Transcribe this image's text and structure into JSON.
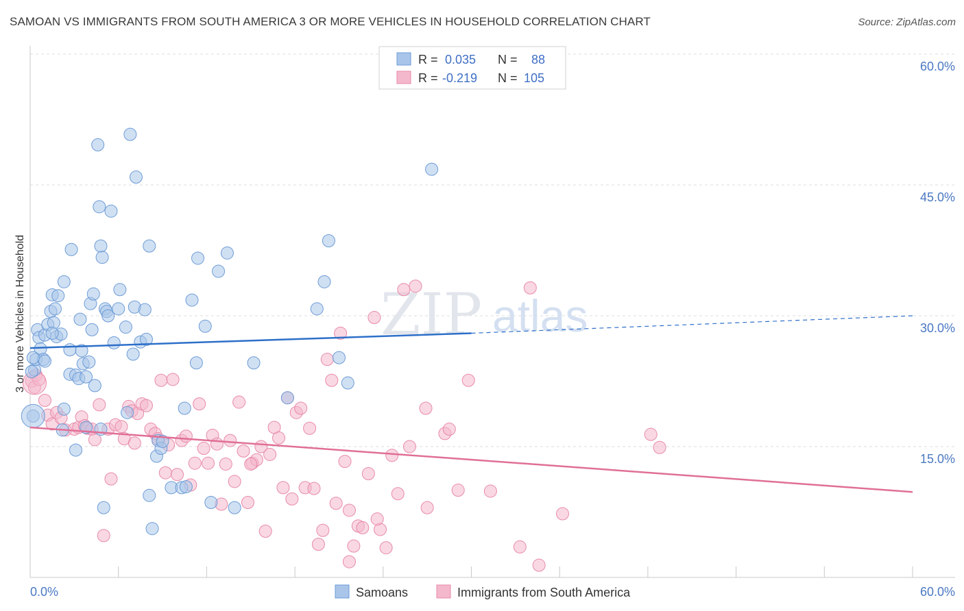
{
  "title": "SAMOAN VS IMMIGRANTS FROM SOUTH AMERICA 3 OR MORE VEHICLES IN HOUSEHOLD CORRELATION CHART",
  "source": "Source: ZipAtlas.com",
  "watermark": {
    "zip": "ZIP",
    "atlas": "atlas"
  },
  "colors": {
    "samoans_fill": "#a9c6ea",
    "samoans_stroke": "#6c9bd6",
    "samoans_line": "#2d6fc9",
    "immigrants_fill": "#f4b8cc",
    "immigrants_stroke": "#e88aa9",
    "immigrants_line": "#e06f97",
    "grid": "#dcdcdc",
    "tick_text": "#4a78c2"
  },
  "legend": {
    "rows": [
      {
        "r_label": "R =",
        "r_value": "0.035",
        "n_label": "N =",
        "n_value": "88"
      },
      {
        "r_label": "R =",
        "r_value": "-0.219",
        "n_label": "N =",
        "n_value": "105"
      }
    ]
  },
  "bottom_legend": {
    "samoans": "Samoans",
    "immigrants": "Immigrants from South America"
  },
  "chart_data": {
    "type": "scatter",
    "title": "SAMOAN VS IMMIGRANTS FROM SOUTH AMERICA 3 OR MORE VEHICLES IN HOUSEHOLD CORRELATION CHART",
    "xlabel": "",
    "ylabel": "3 or more Vehicles in Household",
    "xlim": [
      0,
      60
    ],
    "ylim": [
      0,
      60
    ],
    "x_tick_labels": [
      "0.0%",
      "60.0%"
    ],
    "y_ticks": [
      15,
      30,
      45,
      60
    ],
    "y_tick_labels": [
      "15.0%",
      "30.0%",
      "45.0%",
      "60.0%"
    ],
    "grid": true,
    "legend_position": "top-center",
    "series": [
      {
        "name": "Samoans",
        "r": 0.035,
        "n": 88,
        "trend": {
          "x0": 0,
          "y0": 26.3,
          "x1": 30,
          "y1": 28.0,
          "dashed_to_x": 60,
          "dashed_to_y": 30.0
        },
        "points": [
          [
            0.2,
            18.5
          ],
          [
            0.3,
            23.8
          ],
          [
            0.4,
            25.0
          ],
          [
            0.5,
            28.4
          ],
          [
            0.6,
            27.5
          ],
          [
            0.7,
            26.2
          ],
          [
            0.9,
            25.0
          ],
          [
            1.0,
            24.8
          ],
          [
            1.0,
            27.8
          ],
          [
            1.2,
            29.0
          ],
          [
            1.4,
            30.5
          ],
          [
            1.5,
            32.4
          ],
          [
            1.6,
            29.2
          ],
          [
            1.7,
            30.8
          ],
          [
            1.8,
            27.6
          ],
          [
            1.9,
            32.3
          ],
          [
            2.1,
            27.9
          ],
          [
            2.3,
            33.9
          ],
          [
            2.3,
            19.3
          ],
          [
            2.2,
            16.9
          ],
          [
            2.7,
            26.1
          ],
          [
            2.7,
            23.3
          ],
          [
            2.8,
            37.6
          ],
          [
            3.1,
            23.2
          ],
          [
            3.3,
            22.8
          ],
          [
            3.1,
            14.6
          ],
          [
            3.4,
            29.6
          ],
          [
            3.5,
            26.0
          ],
          [
            3.6,
            24.5
          ],
          [
            3.8,
            23.0
          ],
          [
            3.8,
            17.2
          ],
          [
            4.0,
            24.7
          ],
          [
            4.1,
            31.4
          ],
          [
            4.2,
            28.4
          ],
          [
            4.3,
            32.5
          ],
          [
            4.4,
            22.0
          ],
          [
            4.6,
            49.6
          ],
          [
            4.7,
            42.5
          ],
          [
            4.8,
            38.0
          ],
          [
            4.9,
            36.7
          ],
          [
            5.0,
            8.0
          ],
          [
            5.1,
            30.8
          ],
          [
            5.2,
            30.5
          ],
          [
            5.3,
            30.0
          ],
          [
            5.5,
            42.0
          ],
          [
            5.7,
            26.9
          ],
          [
            6.0,
            30.8
          ],
          [
            6.1,
            33.0
          ],
          [
            6.5,
            28.7
          ],
          [
            6.6,
            18.9
          ],
          [
            6.8,
            50.8
          ],
          [
            7.0,
            25.6
          ],
          [
            7.1,
            31.0
          ],
          [
            7.2,
            45.9
          ],
          [
            7.5,
            27.0
          ],
          [
            7.8,
            30.7
          ],
          [
            7.9,
            27.3
          ],
          [
            8.1,
            38.0
          ],
          [
            8.1,
            9.4
          ],
          [
            8.3,
            5.6
          ],
          [
            8.6,
            13.9
          ],
          [
            8.7,
            15.7
          ],
          [
            8.9,
            14.8
          ],
          [
            9.6,
            10.3
          ],
          [
            10.3,
            10.3
          ],
          [
            10.5,
            19.4
          ],
          [
            10.6,
            10.4
          ],
          [
            11.0,
            31.8
          ],
          [
            11.3,
            24.6
          ],
          [
            11.4,
            36.6
          ],
          [
            11.9,
            28.8
          ],
          [
            12.3,
            8.6
          ],
          [
            12.8,
            35.1
          ],
          [
            13.4,
            37.2
          ],
          [
            13.9,
            8.0
          ],
          [
            15.2,
            24.6
          ],
          [
            17.5,
            20.6
          ],
          [
            19.5,
            30.8
          ],
          [
            20.0,
            33.9
          ],
          [
            20.3,
            38.6
          ],
          [
            21.0,
            25.2
          ],
          [
            21.6,
            22.3
          ],
          [
            27.3,
            46.8
          ],
          [
            0.1,
            23.6
          ],
          [
            0.2,
            25.2
          ],
          [
            1.5,
            28.0
          ],
          [
            4.8,
            17.0
          ],
          [
            9.0,
            15.6
          ]
        ]
      },
      {
        "name": "Immigrants from South America",
        "r": -0.219,
        "n": 105,
        "trend": {
          "x0": 0,
          "y0": 17.2,
          "x1": 60,
          "y1": 9.8
        },
        "points": [
          [
            0.1,
            22.5
          ],
          [
            0.3,
            21.8
          ],
          [
            0.4,
            23.2
          ],
          [
            0.6,
            22.7
          ],
          [
            1.0,
            20.3
          ],
          [
            1.2,
            18.6
          ],
          [
            1.5,
            17.6
          ],
          [
            1.8,
            18.9
          ],
          [
            2.1,
            18.3
          ],
          [
            2.4,
            16.9
          ],
          [
            3.0,
            17.0
          ],
          [
            3.3,
            17.2
          ],
          [
            3.5,
            18.4
          ],
          [
            3.7,
            17.4
          ],
          [
            3.9,
            17.1
          ],
          [
            4.2,
            17.0
          ],
          [
            4.4,
            15.8
          ],
          [
            4.7,
            19.8
          ],
          [
            5.0,
            4.8
          ],
          [
            5.3,
            17.0
          ],
          [
            5.5,
            11.3
          ],
          [
            5.8,
            17.5
          ],
          [
            6.2,
            17.3
          ],
          [
            6.4,
            15.9
          ],
          [
            6.7,
            19.6
          ],
          [
            6.9,
            19.1
          ],
          [
            7.1,
            15.4
          ],
          [
            7.3,
            18.8
          ],
          [
            7.6,
            19.9
          ],
          [
            7.9,
            19.7
          ],
          [
            8.2,
            17.0
          ],
          [
            8.5,
            16.5
          ],
          [
            8.7,
            15.9
          ],
          [
            8.9,
            22.6
          ],
          [
            9.2,
            12.0
          ],
          [
            9.4,
            15.2
          ],
          [
            9.7,
            22.7
          ],
          [
            10.0,
            11.8
          ],
          [
            10.3,
            15.7
          ],
          [
            10.6,
            16.2
          ],
          [
            10.9,
            10.6
          ],
          [
            11.2,
            13.1
          ],
          [
            11.5,
            19.9
          ],
          [
            11.8,
            14.8
          ],
          [
            12.1,
            13.1
          ],
          [
            12.4,
            16.3
          ],
          [
            12.7,
            15.3
          ],
          [
            13.0,
            8.4
          ],
          [
            13.3,
            13.0
          ],
          [
            13.6,
            15.7
          ],
          [
            13.9,
            11.0
          ],
          [
            14.2,
            20.1
          ],
          [
            14.5,
            14.5
          ],
          [
            14.8,
            8.6
          ],
          [
            15.1,
            13.1
          ],
          [
            15.4,
            13.5
          ],
          [
            15.7,
            15.0
          ],
          [
            16.0,
            5.3
          ],
          [
            16.3,
            14.1
          ],
          [
            16.6,
            17.2
          ],
          [
            16.9,
            16.0
          ],
          [
            17.2,
            10.3
          ],
          [
            17.5,
            20.6
          ],
          [
            17.8,
            9.0
          ],
          [
            18.1,
            18.9
          ],
          [
            18.4,
            19.4
          ],
          [
            18.7,
            10.3
          ],
          [
            19.0,
            17.1
          ],
          [
            19.3,
            10.2
          ],
          [
            19.6,
            3.8
          ],
          [
            19.9,
            5.4
          ],
          [
            20.2,
            25.0
          ],
          [
            20.5,
            22.6
          ],
          [
            20.8,
            8.5
          ],
          [
            21.1,
            28.0
          ],
          [
            21.4,
            13.3
          ],
          [
            21.7,
            1.8
          ],
          [
            22.0,
            3.6
          ],
          [
            22.3,
            5.9
          ],
          [
            22.6,
            5.7
          ],
          [
            23.0,
            11.9
          ],
          [
            23.4,
            29.8
          ],
          [
            23.8,
            5.5
          ],
          [
            24.2,
            3.4
          ],
          [
            24.6,
            14.0
          ],
          [
            25.0,
            9.6
          ],
          [
            25.4,
            33.0
          ],
          [
            25.8,
            15.0
          ],
          [
            26.2,
            33.4
          ],
          [
            27.0,
            8.0
          ],
          [
            28.2,
            16.5
          ],
          [
            28.5,
            17.0
          ],
          [
            29.1,
            10.0
          ],
          [
            29.8,
            22.6
          ],
          [
            31.3,
            9.9
          ],
          [
            33.3,
            3.5
          ],
          [
            34.0,
            33.2
          ],
          [
            34.6,
            1.4
          ],
          [
            36.2,
            7.3
          ],
          [
            42.2,
            16.4
          ],
          [
            42.8,
            14.9
          ],
          [
            21.7,
            7.7
          ],
          [
            15.0,
            13.0
          ],
          [
            23.6,
            6.7
          ],
          [
            26.9,
            19.4
          ]
        ]
      }
    ]
  }
}
